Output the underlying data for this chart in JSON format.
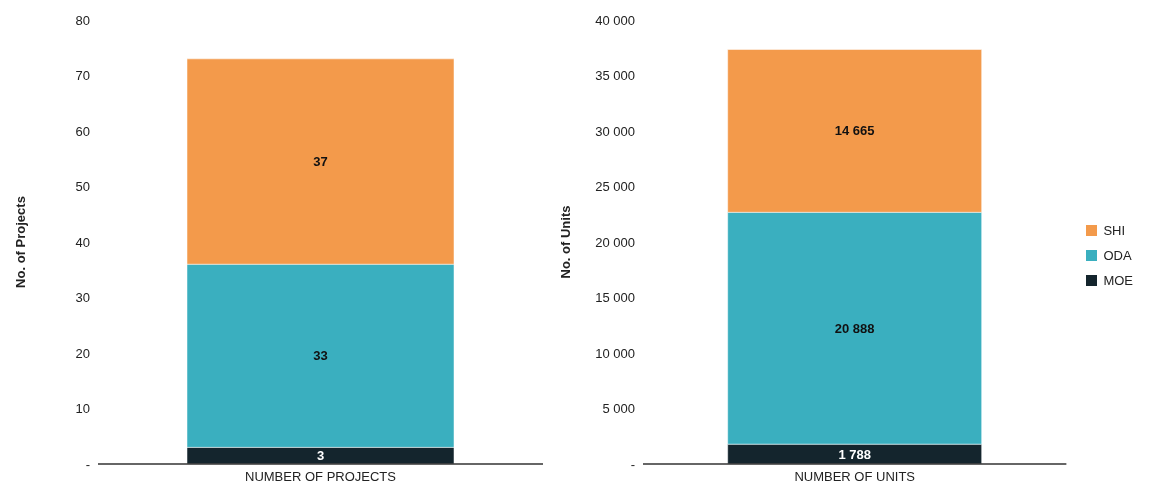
{
  "chart_data": [
    {
      "type": "bar",
      "stacked": true,
      "categories": [
        "NUMBER OF PROJECTS"
      ],
      "ylabel": "No. of Projects",
      "ylim": [
        0,
        80
      ],
      "yticks": [
        {
          "value": 0,
          "label": "-"
        },
        10,
        20,
        30,
        40,
        50,
        60,
        70,
        80
      ],
      "grid": false,
      "data_labels": true,
      "series": [
        {
          "color": "#14252d",
          "values": [
            3
          ]
        },
        {
          "color": "#3aafbf",
          "values": [
            33
          ]
        },
        {
          "color": "#f39a4b",
          "values": [
            37
          ]
        }
      ]
    },
    {
      "type": "bar",
      "stacked": true,
      "categories": [
        "NUMBER OF UNITS"
      ],
      "ylabel": "No. of Units",
      "ylim": [
        0,
        40000
      ],
      "yticks": [
        {
          "value": 0,
          "label": "-"
        },
        {
          "value": 5000,
          "label": "5 000"
        },
        {
          "value": 10000,
          "label": "10 000"
        },
        {
          "value": 15000,
          "label": "15 000"
        },
        {
          "value": 20000,
          "label": "20 000"
        },
        {
          "value": 25000,
          "label": "25 000"
        },
        {
          "value": 30000,
          "label": "30 000"
        },
        {
          "value": 35000,
          "label": "35 000"
        },
        {
          "value": 40000,
          "label": "40 000"
        }
      ],
      "grid": false,
      "legend": "right",
      "series": [
        {
          "name": "MOE",
          "color": "#14252d",
          "values": [
            1788
          ],
          "value_labels": [
            "1 788"
          ]
        },
        {
          "name": "ODA",
          "color": "#3aafbf",
          "values": [
            20888
          ],
          "value_labels": [
            "20 888"
          ]
        },
        {
          "name": "SHI",
          "color": "#f39a4b",
          "values": [
            14665
          ],
          "value_labels": [
            "14 665"
          ]
        }
      ]
    }
  ]
}
